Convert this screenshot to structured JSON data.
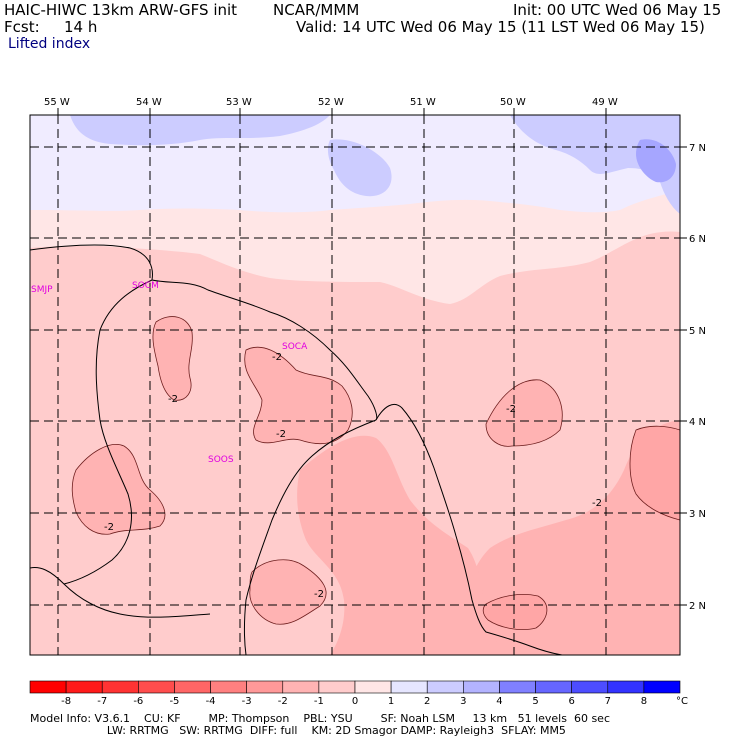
{
  "header": {
    "model": "HAIC-HIWC 13km ARW-GFS init",
    "org": "NCAR/MMM",
    "init": "Init: 00 UTC Wed 06 May 15",
    "fcst_label": "Fcst:",
    "fcst_value": "14 h",
    "valid": "Valid: 14 UTC Wed 06 May 15 (11 LST Wed 06 May 15)",
    "field": "Lifted index"
  },
  "map": {
    "lon_labels": [
      "55 W",
      "54 W",
      "53 W",
      "52 W",
      "51 W",
      "50 W",
      "49 W"
    ],
    "lat_labels": [
      "7 N",
      "6 N",
      "5 N",
      "4 N",
      "3 N",
      "2 N"
    ],
    "stations": [
      "SMJP",
      "SOCM",
      "SOCA",
      "SOOS"
    ],
    "contour_labels": [
      "-2",
      "-2",
      "-2",
      "-2",
      "-2",
      "-2",
      "-2"
    ]
  },
  "colorbar": {
    "ticks": [
      "-8",
      "-7",
      "-6",
      "-5",
      "-4",
      "-3",
      "-2",
      "-1",
      "0",
      "1",
      "2",
      "3",
      "4",
      "5",
      "6",
      "7",
      "8"
    ],
    "unit": "°C",
    "colors": [
      "#ff1a1a",
      "#ff3333",
      "#ff4d4d",
      "#ff6666",
      "#ff8080",
      "#ff9999",
      "#ffb3b3",
      "#ffcccc",
      "#ffe6e6",
      "#e6e6ff",
      "#ccccff",
      "#b3b3ff",
      "#8080ff",
      "#6666ff",
      "#4d4dff",
      "#3333ff",
      "#0000ff"
    ]
  },
  "footer": {
    "line1": "Model Info: V3.6.1    CU: KF        MP: Thompson    PBL: YSU        SF: Noah LSM     13 km   51 levels  60 sec",
    "line2": "                      LW: RRTMG   SW: RRTMG  DIFF: full    KM: 2D Smagor DAMP: Rayleigh3  SFLAY: MM5"
  }
}
